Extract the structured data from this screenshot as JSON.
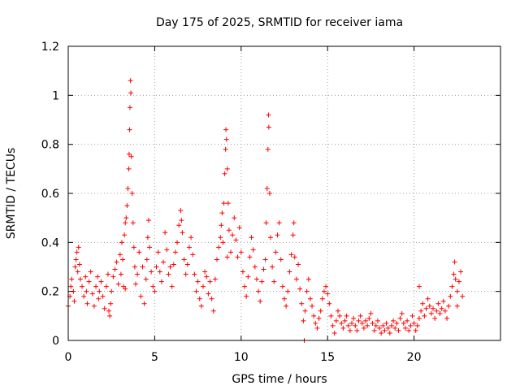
{
  "chart_data": {
    "type": "scatter",
    "title": "Day 175 of 2025, SRMTID for receiver iama",
    "xlabel": "GPS time / hours",
    "ylabel": "SRMTID / TECUs",
    "xlim": [
      0,
      25
    ],
    "ylim": [
      0,
      1.2
    ],
    "xticks": [
      "0",
      "5",
      "10",
      "15",
      "20"
    ],
    "xtick_values": [
      0,
      5,
      10,
      15,
      20
    ],
    "yticks": [
      "0",
      "0.2",
      "0.4",
      "0.6",
      "0.8",
      "1",
      "1.2"
    ],
    "ytick_values": [
      0,
      0.2,
      0.4,
      0.6,
      0.8,
      1.0,
      1.2
    ],
    "grid": true,
    "marker": "+",
    "color": "#ff0000",
    "series": [
      {
        "name": "SRMTID",
        "points": [
          [
            0.0,
            0.14
          ],
          [
            0.1,
            0.18
          ],
          [
            0.15,
            0.22
          ],
          [
            0.2,
            0.25
          ],
          [
            0.3,
            0.2
          ],
          [
            0.35,
            0.16
          ],
          [
            0.4,
            0.3
          ],
          [
            0.45,
            0.33
          ],
          [
            0.5,
            0.36
          ],
          [
            0.55,
            0.28
          ],
          [
            0.6,
            0.38
          ],
          [
            0.65,
            0.31
          ],
          [
            0.7,
            0.25
          ],
          [
            0.8,
            0.22
          ],
          [
            0.9,
            0.18
          ],
          [
            1.0,
            0.26
          ],
          [
            1.05,
            0.2
          ],
          [
            1.1,
            0.15
          ],
          [
            1.2,
            0.24
          ],
          [
            1.3,
            0.28
          ],
          [
            1.4,
            0.19
          ],
          [
            1.5,
            0.14
          ],
          [
            1.6,
            0.22
          ],
          [
            1.7,
            0.26
          ],
          [
            1.75,
            0.17
          ],
          [
            1.8,
            0.2
          ],
          [
            1.9,
            0.24
          ],
          [
            2.0,
            0.18
          ],
          [
            2.1,
            0.13
          ],
          [
            2.2,
            0.22
          ],
          [
            2.3,
            0.27
          ],
          [
            2.35,
            0.12
          ],
          [
            2.4,
            0.1
          ],
          [
            2.45,
            0.15
          ],
          [
            2.5,
            0.2
          ],
          [
            2.6,
            0.26
          ],
          [
            2.7,
            0.29
          ],
          [
            2.8,
            0.32
          ],
          [
            2.9,
            0.23
          ],
          [
            3.0,
            0.35
          ],
          [
            3.05,
            0.27
          ],
          [
            3.1,
            0.4
          ],
          [
            3.15,
            0.33
          ],
          [
            3.2,
            0.22
          ],
          [
            3.25,
            0.43
          ],
          [
            3.3,
            0.48
          ],
          [
            3.35,
            0.5
          ],
          [
            3.4,
            0.55
          ],
          [
            3.45,
            0.62
          ],
          [
            3.5,
            0.7
          ],
          [
            3.52,
            0.76
          ],
          [
            3.55,
            0.86
          ],
          [
            3.57,
            0.95
          ],
          [
            3.6,
            1.06
          ],
          [
            3.62,
            1.01
          ],
          [
            3.65,
            0.75
          ],
          [
            3.7,
            0.6
          ],
          [
            3.75,
            0.48
          ],
          [
            3.8,
            0.38
          ],
          [
            3.85,
            0.3
          ],
          [
            3.9,
            0.23
          ],
          [
            4.0,
            0.27
          ],
          [
            4.1,
            0.36
          ],
          [
            4.2,
            0.18
          ],
          [
            4.3,
            0.3
          ],
          [
            4.4,
            0.15
          ],
          [
            4.5,
            0.25
          ],
          [
            4.55,
            0.33
          ],
          [
            4.6,
            0.42
          ],
          [
            4.65,
            0.49
          ],
          [
            4.7,
            0.38
          ],
          [
            4.8,
            0.28
          ],
          [
            4.9,
            0.22
          ],
          [
            5.0,
            0.2
          ],
          [
            5.1,
            0.3
          ],
          [
            5.2,
            0.36
          ],
          [
            5.3,
            0.28
          ],
          [
            5.4,
            0.24
          ],
          [
            5.5,
            0.32
          ],
          [
            5.6,
            0.44
          ],
          [
            5.7,
            0.37
          ],
          [
            5.8,
            0.27
          ],
          [
            5.9,
            0.3
          ],
          [
            6.0,
            0.22
          ],
          [
            6.1,
            0.31
          ],
          [
            6.2,
            0.36
          ],
          [
            6.3,
            0.4
          ],
          [
            6.4,
            0.47
          ],
          [
            6.5,
            0.53
          ],
          [
            6.55,
            0.49
          ],
          [
            6.6,
            0.44
          ],
          [
            6.7,
            0.33
          ],
          [
            6.8,
            0.27
          ],
          [
            6.9,
            0.31
          ],
          [
            7.0,
            0.38
          ],
          [
            7.1,
            0.42
          ],
          [
            7.2,
            0.35
          ],
          [
            7.3,
            0.27
          ],
          [
            7.4,
            0.2
          ],
          [
            7.5,
            0.24
          ],
          [
            7.6,
            0.17
          ],
          [
            7.7,
            0.14
          ],
          [
            7.8,
            0.22
          ],
          [
            7.9,
            0.28
          ],
          [
            8.0,
            0.26
          ],
          [
            8.1,
            0.19
          ],
          [
            8.2,
            0.24
          ],
          [
            8.3,
            0.17
          ],
          [
            8.4,
            0.12
          ],
          [
            8.5,
            0.25
          ],
          [
            8.6,
            0.33
          ],
          [
            8.7,
            0.38
          ],
          [
            8.8,
            0.42
          ],
          [
            8.85,
            0.47
          ],
          [
            8.9,
            0.52
          ],
          [
            8.95,
            0.4
          ],
          [
            9.0,
            0.56
          ],
          [
            9.05,
            0.68
          ],
          [
            9.1,
            0.78
          ],
          [
            9.12,
            0.86
          ],
          [
            9.15,
            0.82
          ],
          [
            9.2,
            0.7
          ],
          [
            9.25,
            0.56
          ],
          [
            9.3,
            0.45
          ],
          [
            9.4,
            0.36
          ],
          [
            9.5,
            0.43
          ],
          [
            9.6,
            0.5
          ],
          [
            9.7,
            0.41
          ],
          [
            9.8,
            0.34
          ],
          [
            9.9,
            0.46
          ],
          [
            10.0,
            0.36
          ],
          [
            10.1,
            0.28
          ],
          [
            10.2,
            0.22
          ],
          [
            10.3,
            0.18
          ],
          [
            10.4,
            0.26
          ],
          [
            10.5,
            0.34
          ],
          [
            10.6,
            0.42
          ],
          [
            10.7,
            0.37
          ],
          [
            10.8,
            0.3
          ],
          [
            10.9,
            0.25
          ],
          [
            11.0,
            0.2
          ],
          [
            11.1,
            0.16
          ],
          [
            11.2,
            0.24
          ],
          [
            11.3,
            0.29
          ],
          [
            11.4,
            0.33
          ],
          [
            11.45,
            0.48
          ],
          [
            11.5,
            0.62
          ],
          [
            11.55,
            0.78
          ],
          [
            11.58,
            0.92
          ],
          [
            11.6,
            0.87
          ],
          [
            11.65,
            0.6
          ],
          [
            11.7,
            0.42
          ],
          [
            11.8,
            0.3
          ],
          [
            11.9,
            0.24
          ],
          [
            12.0,
            0.36
          ],
          [
            12.1,
            0.43
          ],
          [
            12.2,
            0.48
          ],
          [
            12.3,
            0.33
          ],
          [
            12.4,
            0.22
          ],
          [
            12.5,
            0.17
          ],
          [
            12.6,
            0.14
          ],
          [
            12.7,
            0.2
          ],
          [
            12.8,
            0.28
          ],
          [
            12.9,
            0.35
          ],
          [
            13.0,
            0.43
          ],
          [
            13.05,
            0.48
          ],
          [
            13.1,
            0.34
          ],
          [
            13.2,
            0.25
          ],
          [
            13.3,
            0.31
          ],
          [
            13.4,
            0.21
          ],
          [
            13.5,
            0.15
          ],
          [
            13.6,
            0.08
          ],
          [
            13.65,
            0.0
          ],
          [
            13.7,
            0.12
          ],
          [
            13.8,
            0.2
          ],
          [
            13.9,
            0.25
          ],
          [
            14.0,
            0.17
          ],
          [
            14.1,
            0.14
          ],
          [
            14.2,
            0.1
          ],
          [
            14.3,
            0.07
          ],
          [
            14.4,
            0.05
          ],
          [
            14.5,
            0.09
          ],
          [
            14.6,
            0.12
          ],
          [
            14.7,
            0.17
          ],
          [
            14.8,
            0.2
          ],
          [
            14.9,
            0.22
          ],
          [
            15.0,
            0.19
          ],
          [
            15.1,
            0.15
          ],
          [
            15.2,
            0.1
          ],
          [
            15.3,
            0.06
          ],
          [
            15.4,
            0.03
          ],
          [
            15.5,
            0.08
          ],
          [
            15.6,
            0.12
          ],
          [
            15.7,
            0.1
          ],
          [
            15.8,
            0.07
          ],
          [
            15.9,
            0.05
          ],
          [
            16.0,
            0.08
          ],
          [
            16.1,
            0.1
          ],
          [
            16.2,
            0.06
          ],
          [
            16.3,
            0.04
          ],
          [
            16.4,
            0.07
          ],
          [
            16.5,
            0.09
          ],
          [
            16.6,
            0.06
          ],
          [
            16.7,
            0.04
          ],
          [
            16.8,
            0.08
          ],
          [
            16.9,
            0.1
          ],
          [
            17.0,
            0.07
          ],
          [
            17.1,
            0.05
          ],
          [
            17.2,
            0.08
          ],
          [
            17.3,
            0.06
          ],
          [
            17.4,
            0.09
          ],
          [
            17.5,
            0.11
          ],
          [
            17.6,
            0.07
          ],
          [
            17.7,
            0.04
          ],
          [
            17.8,
            0.06
          ],
          [
            17.9,
            0.08
          ],
          [
            18.0,
            0.05
          ],
          [
            18.1,
            0.03
          ],
          [
            18.2,
            0.06
          ],
          [
            18.3,
            0.04
          ],
          [
            18.4,
            0.07
          ],
          [
            18.5,
            0.05
          ],
          [
            18.6,
            0.03
          ],
          [
            18.7,
            0.06
          ],
          [
            18.8,
            0.08
          ],
          [
            18.9,
            0.05
          ],
          [
            19.0,
            0.07
          ],
          [
            19.1,
            0.04
          ],
          [
            19.2,
            0.09
          ],
          [
            19.3,
            0.11
          ],
          [
            19.4,
            0.07
          ],
          [
            19.5,
            0.05
          ],
          [
            19.6,
            0.08
          ],
          [
            19.7,
            0.04
          ],
          [
            19.8,
            0.06
          ],
          [
            19.9,
            0.1
          ],
          [
            20.0,
            0.07
          ],
          [
            20.1,
            0.04
          ],
          [
            20.2,
            0.06
          ],
          [
            20.3,
            0.09
          ],
          [
            20.4,
            0.12
          ],
          [
            20.5,
            0.15
          ],
          [
            20.6,
            0.1
          ],
          [
            20.7,
            0.13
          ],
          [
            20.8,
            0.17
          ],
          [
            20.9,
            0.14
          ],
          [
            21.0,
            0.11
          ],
          [
            21.1,
            0.13
          ],
          [
            21.2,
            0.09
          ],
          [
            21.3,
            0.12
          ],
          [
            21.4,
            0.15
          ],
          [
            21.5,
            0.11
          ],
          [
            21.6,
            0.13
          ],
          [
            21.7,
            0.16
          ],
          [
            21.8,
            0.12
          ],
          [
            21.9,
            0.09
          ],
          [
            22.0,
            0.14
          ],
          [
            22.1,
            0.18
          ],
          [
            22.2,
            0.22
          ],
          [
            22.3,
            0.27
          ],
          [
            22.35,
            0.32
          ],
          [
            22.4,
            0.25
          ],
          [
            22.5,
            0.2
          ],
          [
            22.6,
            0.24
          ],
          [
            22.7,
            0.28
          ],
          [
            22.8,
            0.18
          ],
          [
            22.5,
            0.14
          ],
          [
            20.3,
            0.22
          ],
          [
            3.3,
            0.21
          ],
          [
            9.2,
            0.34
          ]
        ]
      }
    ]
  }
}
